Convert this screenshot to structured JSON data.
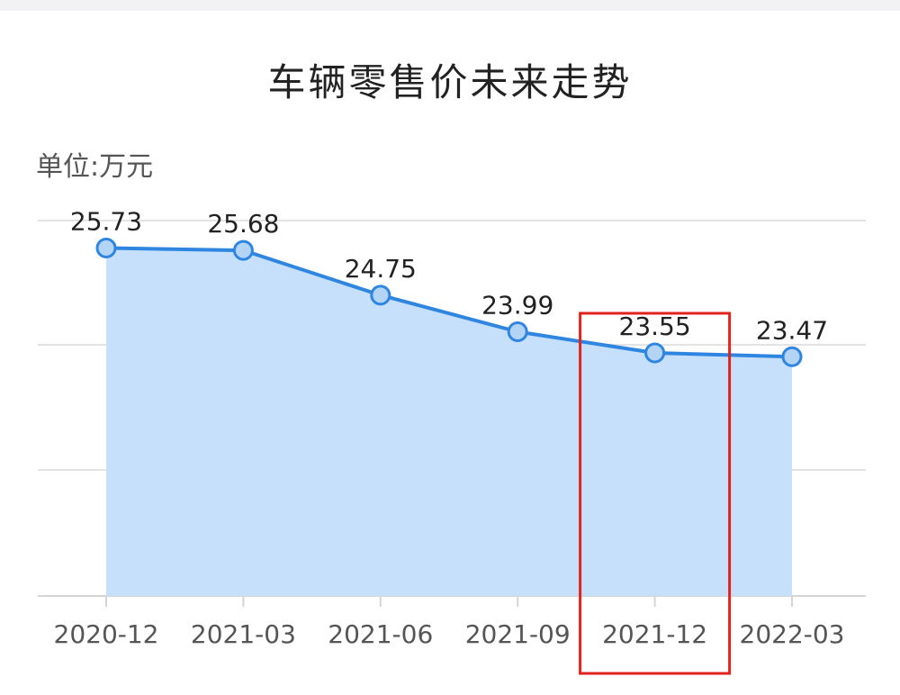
{
  "chart_data": {
    "type": "area",
    "title": "车辆零售价未来走势",
    "unit_label": "单位:万元",
    "categories": [
      "2020-12",
      "2021-03",
      "2021-06",
      "2021-09",
      "2021-12",
      "2022-03"
    ],
    "series": [
      {
        "values": [
          25.73,
          25.68,
          24.75,
          23.99,
          23.55,
          23.47
        ],
        "labels": [
          "25.73",
          "25.68",
          "24.75",
          "23.99",
          "23.55",
          "23.47"
        ]
      }
    ],
    "ylim": [
      18.5,
      26.3
    ],
    "grid": true,
    "highlight_category": "2021-12",
    "colors": {
      "line": "#2f86e0",
      "fill": "#c6dffa",
      "marker_fill": "#b4d4f6",
      "grid": "#e3e3e3",
      "highlight": "#e0231c"
    }
  }
}
